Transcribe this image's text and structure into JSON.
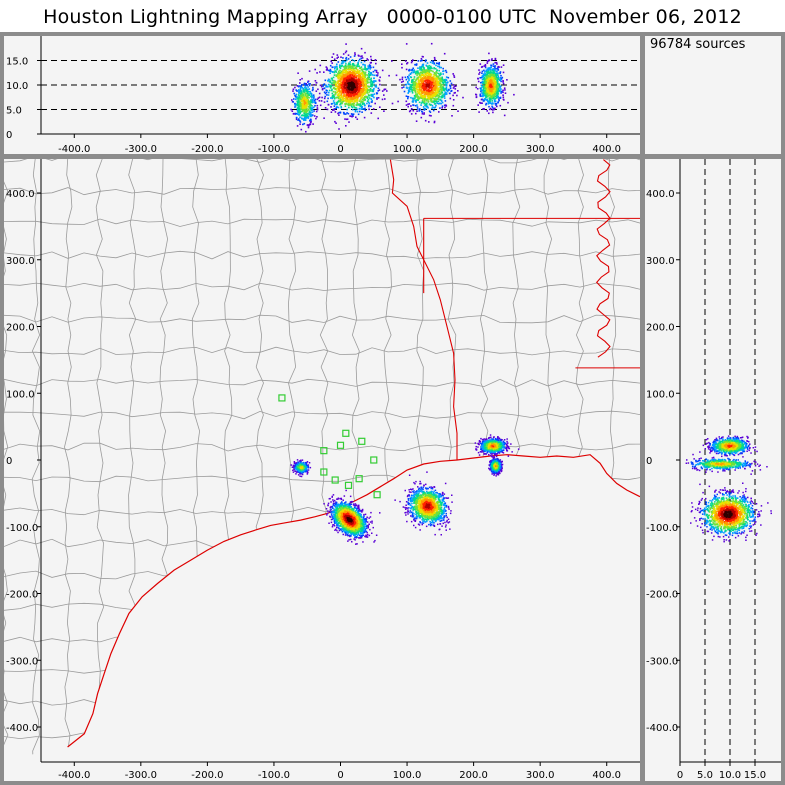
{
  "title": "Houston Lightning Mapping Array   0000-0100 UTC  November 06, 2012",
  "source_count": "96784 sources",
  "colors": {
    "frame": "#8c8c8c",
    "panel": "#f4f4f4",
    "county": "#9b9b9b",
    "coast_state": "#dd0000",
    "station": "#33cc33",
    "density": [
      "#5a00d6",
      "#0044ff",
      "#00a0ff",
      "#00d890",
      "#6ce23a",
      "#e8e000",
      "#ff9a00",
      "#ff2000",
      "#b00000",
      "#300000"
    ]
  },
  "chart_data": [
    {
      "type": "scatter",
      "name_role": "altitude-vs-east-west",
      "x": {
        "range": [
          -450,
          450
        ],
        "ticks": [
          -400,
          -300,
          -200,
          -100,
          0,
          100,
          200,
          300,
          400
        ],
        "tick_labels": [
          "-400.0",
          "-300.0",
          "-200.0",
          "-100.0",
          "0",
          "100.0",
          "200.0",
          "300.0",
          "400.0"
        ]
      },
      "y": {
        "range": [
          0,
          20
        ],
        "ticks": [
          0,
          5,
          10,
          15
        ],
        "tick_labels": [
          "0",
          "5.0",
          "10.0",
          "15.0"
        ]
      },
      "reference_lines": [
        5,
        10,
        15
      ],
      "clusters": [
        {
          "x": 15,
          "alt": 10,
          "spread_x": 18,
          "spread_alt": 2.6,
          "intensity": 1.0
        },
        {
          "x": 130,
          "alt": 10,
          "spread_x": 16,
          "spread_alt": 2.4,
          "intensity": 0.65
        },
        {
          "x": 225,
          "alt": 10,
          "spread_x": 8,
          "spread_alt": 2.0,
          "intensity": 0.45
        },
        {
          "x": -55,
          "alt": 6.5,
          "spread_x": 8,
          "spread_alt": 2.0,
          "intensity": 0.2
        }
      ]
    },
    {
      "type": "scatter",
      "name_role": "plan-view-map",
      "x": {
        "range": [
          -450,
          450
        ],
        "ticks": [
          -400,
          -300,
          -200,
          -100,
          0,
          100,
          200,
          300,
          400
        ],
        "tick_labels": [
          "-400.0",
          "-300.0",
          "-200.0",
          "-100.0",
          "0",
          "100.0",
          "200.0",
          "300.0",
          "400.0"
        ]
      },
      "y": {
        "range": [
          -450,
          450
        ],
        "ticks": [
          -400,
          -300,
          -200,
          -100,
          0,
          100,
          200,
          300,
          400
        ],
        "tick_labels": [
          "-400.0",
          "-300.0",
          "-200.0",
          "-100.0",
          "0",
          "100.0",
          "200.0",
          "300.0",
          "400.0"
        ]
      },
      "clusters": [
        {
          "x": 12,
          "y": -88,
          "spread_x": 14,
          "spread_y": 9,
          "tilt": -0.75,
          "intensity": 1.0
        },
        {
          "x": 130,
          "y": -68,
          "spread_x": 14,
          "spread_y": 12,
          "tilt": -0.55,
          "intensity": 0.7
        },
        {
          "x": 228,
          "y": 22,
          "spread_x": 9,
          "spread_y": 5,
          "tilt": 0,
          "intensity": 0.45
        },
        {
          "x": 232,
          "y": -8,
          "spread_x": 4,
          "spread_y": 5,
          "tilt": 0,
          "intensity": 0.3
        },
        {
          "x": -60,
          "y": -10,
          "spread_x": 5,
          "spread_y": 4,
          "tilt": 0,
          "intensity": 0.15
        }
      ],
      "stations": [
        [
          -88,
          93
        ],
        [
          -25,
          14
        ],
        [
          0,
          22
        ],
        [
          8,
          40
        ],
        [
          32,
          28
        ],
        [
          -25,
          -18
        ],
        [
          -8,
          -30
        ],
        [
          12,
          -38
        ],
        [
          28,
          -28
        ],
        [
          50,
          0
        ],
        [
          55,
          -52
        ]
      ]
    },
    {
      "type": "scatter",
      "name_role": "north-south-vs-altitude",
      "x": {
        "range": [
          0,
          20
        ],
        "ticks": [
          0,
          5,
          10,
          15
        ],
        "tick_labels": [
          "0",
          "5.0",
          "10.0",
          "15.0"
        ]
      },
      "y": {
        "range": [
          -450,
          450
        ],
        "ticks": [
          -400,
          -300,
          -200,
          -100,
          0,
          100,
          200,
          300,
          400
        ],
        "tick_labels": [
          "-400.0",
          "-300.0",
          "-200.0",
          "-100.0",
          "0",
          "100.0",
          "200.0",
          "300.0",
          "400.0"
        ]
      },
      "reference_lines": [
        5,
        10,
        15
      ],
      "clusters": [
        {
          "alt": 9.5,
          "y": -80,
          "spread_alt": 2.4,
          "spread_y": 14,
          "intensity": 1.0
        },
        {
          "alt": 9.8,
          "y": 22,
          "spread_alt": 1.8,
          "spread_y": 6,
          "intensity": 0.45
        },
        {
          "alt": 8,
          "y": -5,
          "spread_alt": 2.8,
          "spread_y": 4,
          "intensity": 0.25
        }
      ]
    }
  ]
}
